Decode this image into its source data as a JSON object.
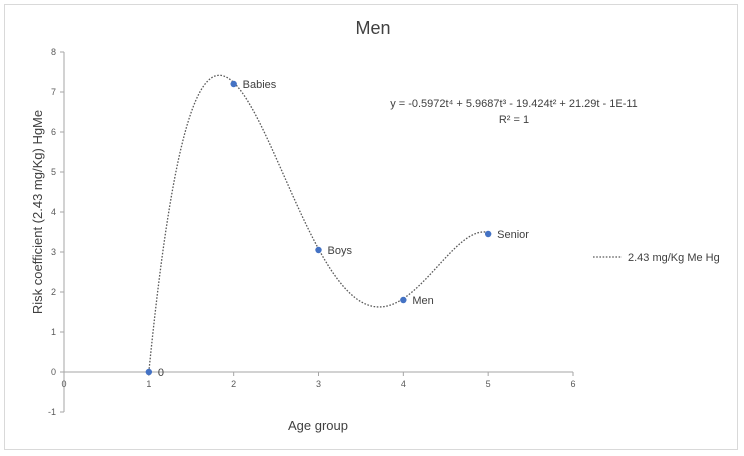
{
  "chart_data": {
    "type": "scatter",
    "title": "Men",
    "xlabel": "Age group",
    "ylabel": "Risk coefficient (2.43 mg/Kg) HgMe",
    "xlim": [
      0,
      6
    ],
    "ylim": [
      -1,
      8
    ],
    "xticks": [
      0,
      1,
      2,
      3,
      4,
      5,
      6
    ],
    "yticks": [
      -1,
      0,
      1,
      2,
      3,
      4,
      5,
      6,
      7,
      8
    ],
    "grid": false,
    "legend_position": "right",
    "points": [
      {
        "x": 1,
        "y": 0,
        "label": "0"
      },
      {
        "x": 2,
        "y": 7.2,
        "label": "Babies"
      },
      {
        "x": 3,
        "y": 3.05,
        "label": "Boys"
      },
      {
        "x": 4,
        "y": 1.8,
        "label": "Men"
      },
      {
        "x": 5,
        "y": 3.45,
        "label": "Senior"
      }
    ],
    "trendline": {
      "type": "polynomial",
      "coefficients": [
        -0.5972,
        5.9687,
        -19.424,
        21.29,
        -1e-11
      ],
      "x_range": [
        1,
        5
      ],
      "legend": "2.43 mg/Kg Me Hg",
      "equation": "y = -0.5972t⁴ + 5.9687t³ - 19.424t² + 21.29t - 1E-11",
      "r_squared": "R² = 1"
    },
    "colors": {
      "marker": "#4472c4",
      "trendline": "#595959",
      "axis": "#a6a6a6",
      "text": "#404040"
    }
  }
}
